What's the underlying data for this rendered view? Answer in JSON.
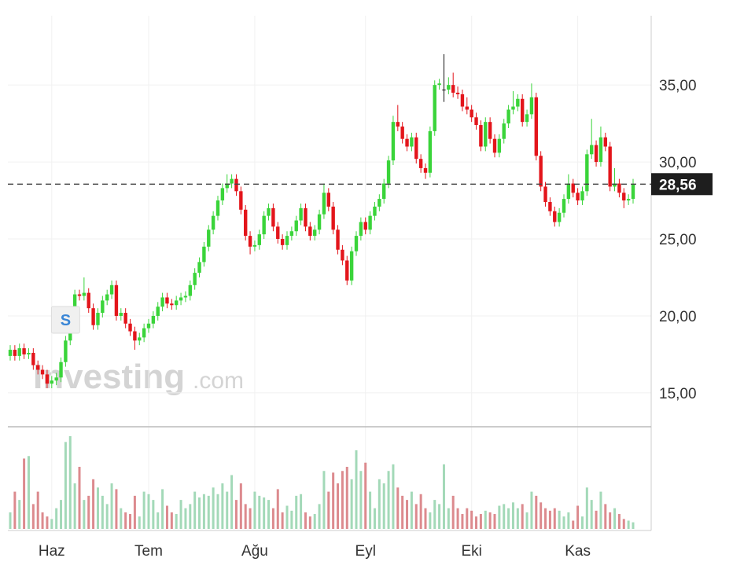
{
  "chart_data": {
    "type": "candlestick",
    "ylim": [
      12.8,
      39.5
    ],
    "yticks": [
      {
        "value": 15,
        "label": "15,00"
      },
      {
        "value": 20,
        "label": "20,00"
      },
      {
        "value": 25,
        "label": "25,00"
      },
      {
        "value": 30,
        "label": "30,00"
      },
      {
        "value": 35,
        "label": "35,00"
      }
    ],
    "grid": true,
    "last_price": {
      "value": 28.56,
      "label": "28,56"
    },
    "annotation": "S",
    "watermark": [
      "Investing",
      ".com"
    ],
    "up_color": "#3ad43a",
    "down_color": "#e3151b",
    "neutral_color": "#111111",
    "volume_up_color": "#a3d9b8",
    "volume_down_color": "#dc8a8e",
    "categories": [
      null,
      null,
      null,
      null,
      null,
      null,
      null,
      null,
      null,
      "Haz",
      null,
      null,
      null,
      null,
      null,
      null,
      null,
      null,
      null,
      null,
      null,
      null,
      null,
      null,
      null,
      null,
      null,
      null,
      null,
      null,
      "Tem",
      null,
      null,
      null,
      null,
      null,
      null,
      null,
      null,
      null,
      null,
      null,
      null,
      null,
      null,
      null,
      null,
      null,
      null,
      null,
      null,
      null,
      null,
      "Ağu",
      null,
      null,
      null,
      null,
      null,
      null,
      null,
      null,
      null,
      null,
      null,
      null,
      null,
      null,
      null,
      null,
      null,
      null,
      null,
      null,
      null,
      null,
      null,
      "Eyl",
      null,
      null,
      null,
      null,
      null,
      null,
      null,
      null,
      null,
      null,
      null,
      null,
      null,
      null,
      null,
      null,
      null,
      null,
      null,
      null,
      null,
      null,
      "Eki",
      null,
      null,
      null,
      null,
      null,
      null,
      null,
      null,
      null,
      null,
      null,
      null,
      null,
      null,
      null,
      null,
      null,
      null,
      null,
      null,
      null,
      null,
      "Kas",
      null,
      null,
      null,
      null,
      null,
      null,
      null,
      null,
      null,
      null,
      null,
      null
    ],
    "candles": [
      [
        17.4,
        18.1,
        17.1,
        17.8
      ],
      [
        17.8,
        18.1,
        17.1,
        17.4
      ],
      [
        17.4,
        18.2,
        17.1,
        17.9
      ],
      [
        17.9,
        18.2,
        17.2,
        17.5
      ],
      [
        17.5,
        17.9,
        17.2,
        17.6
      ],
      [
        17.6,
        17.9,
        16.5,
        16.8
      ],
      [
        16.8,
        17.1,
        16.2,
        16.5
      ],
      [
        16.5,
        16.8,
        15.9,
        16.2
      ],
      [
        16.2,
        16.5,
        15.3,
        15.6
      ],
      [
        15.6,
        16.1,
        15.3,
        15.8
      ],
      [
        15.8,
        16.3,
        15.5,
        16.0
      ],
      [
        16.0,
        17.3,
        15.7,
        17.0
      ],
      [
        17.0,
        18.7,
        16.7,
        18.4
      ],
      [
        18.4,
        19.8,
        18.1,
        19.5
      ],
      [
        19.5,
        21.7,
        19.2,
        21.4
      ],
      [
        21.4,
        21.7,
        21.0,
        21.3
      ],
      [
        21.3,
        22.5,
        21.0,
        21.5
      ],
      [
        21.5,
        21.8,
        20.2,
        20.5
      ],
      [
        20.5,
        20.8,
        19.1,
        19.4
      ],
      [
        19.4,
        20.5,
        19.1,
        20.2
      ],
      [
        20.2,
        21.3,
        19.9,
        21.0
      ],
      [
        21.0,
        21.7,
        20.7,
        21.4
      ],
      [
        21.4,
        22.3,
        21.1,
        22.0
      ],
      [
        22.0,
        22.3,
        19.7,
        20.0
      ],
      [
        20.0,
        20.5,
        19.7,
        20.2
      ],
      [
        20.2,
        20.5,
        19.2,
        19.5
      ],
      [
        19.5,
        19.8,
        18.7,
        19.0
      ],
      [
        19.0,
        19.3,
        17.8,
        18.4
      ],
      [
        18.4,
        18.9,
        18.1,
        18.6
      ],
      [
        18.6,
        19.5,
        18.3,
        19.2
      ],
      [
        19.2,
        19.8,
        18.9,
        19.5
      ],
      [
        19.5,
        20.3,
        19.2,
        20.0
      ],
      [
        20.0,
        20.9,
        19.7,
        20.6
      ],
      [
        20.6,
        21.5,
        20.3,
        21.2
      ],
      [
        21.2,
        21.5,
        20.5,
        20.8
      ],
      [
        20.8,
        21.1,
        20.4,
        20.7
      ],
      [
        20.7,
        21.3,
        20.4,
        21.0
      ],
      [
        21.0,
        21.5,
        20.7,
        21.2
      ],
      [
        21.2,
        21.6,
        20.9,
        21.3
      ],
      [
        21.3,
        22.3,
        21.0,
        22.0
      ],
      [
        22.0,
        23.1,
        21.7,
        22.8
      ],
      [
        22.8,
        23.8,
        22.5,
        23.5
      ],
      [
        23.5,
        24.8,
        23.2,
        24.5
      ],
      [
        24.5,
        25.9,
        24.2,
        25.6
      ],
      [
        25.6,
        26.8,
        25.3,
        26.5
      ],
      [
        26.5,
        27.8,
        26.2,
        27.5
      ],
      [
        27.5,
        28.6,
        27.2,
        28.3
      ],
      [
        28.3,
        29.2,
        28.0,
        28.6
      ],
      [
        28.6,
        29.2,
        28.3,
        28.9
      ],
      [
        28.9,
        29.2,
        27.8,
        28.1
      ],
      [
        28.1,
        28.4,
        26.6,
        26.9
      ],
      [
        26.9,
        27.2,
        24.9,
        25.2
      ],
      [
        25.2,
        25.5,
        24.0,
        24.5
      ],
      [
        24.5,
        24.9,
        24.2,
        24.6
      ],
      [
        24.6,
        25.6,
        24.3,
        25.3
      ],
      [
        25.3,
        26.8,
        25.0,
        26.5
      ],
      [
        26.5,
        27.3,
        26.2,
        27.0
      ],
      [
        27.0,
        27.3,
        25.5,
        25.8
      ],
      [
        25.8,
        26.1,
        24.7,
        25.0
      ],
      [
        25.0,
        25.3,
        24.3,
        24.6
      ],
      [
        24.6,
        25.5,
        24.3,
        25.2
      ],
      [
        25.2,
        25.8,
        24.9,
        25.5
      ],
      [
        25.5,
        26.5,
        25.2,
        26.2
      ],
      [
        26.2,
        27.3,
        25.9,
        27.0
      ],
      [
        27.0,
        27.3,
        25.5,
        25.8
      ],
      [
        25.8,
        26.1,
        24.9,
        25.2
      ],
      [
        25.2,
        25.9,
        24.9,
        25.6
      ],
      [
        25.6,
        26.9,
        25.3,
        26.6
      ],
      [
        26.6,
        28.6,
        26.3,
        28.0
      ],
      [
        28.0,
        28.3,
        26.8,
        27.1
      ],
      [
        27.1,
        27.4,
        25.3,
        25.6
      ],
      [
        25.6,
        25.9,
        24.0,
        24.3
      ],
      [
        24.3,
        24.6,
        23.3,
        23.6
      ],
      [
        23.6,
        23.9,
        22.0,
        22.3
      ],
      [
        22.3,
        24.5,
        22.0,
        24.2
      ],
      [
        24.2,
        25.5,
        23.9,
        25.2
      ],
      [
        25.2,
        26.4,
        24.9,
        26.1
      ],
      [
        26.1,
        26.4,
        25.3,
        25.6
      ],
      [
        25.6,
        26.8,
        25.3,
        26.5
      ],
      [
        26.5,
        27.4,
        26.2,
        27.1
      ],
      [
        27.1,
        27.9,
        26.8,
        27.6
      ],
      [
        27.6,
        28.9,
        27.3,
        28.6
      ],
      [
        28.6,
        30.4,
        28.3,
        30.1
      ],
      [
        30.1,
        33.0,
        29.8,
        32.6
      ],
      [
        32.6,
        33.7,
        32.0,
        32.3
      ],
      [
        32.3,
        32.6,
        31.2,
        31.5
      ],
      [
        31.5,
        31.8,
        30.7,
        31.0
      ],
      [
        31.0,
        31.9,
        30.7,
        31.6
      ],
      [
        31.6,
        31.9,
        29.9,
        30.2
      ],
      [
        30.2,
        30.5,
        29.3,
        29.6
      ],
      [
        29.6,
        29.9,
        28.9,
        29.3
      ],
      [
        29.3,
        32.3,
        29.0,
        32.0
      ],
      [
        32.0,
        35.3,
        31.7,
        35.0
      ],
      [
        35.0,
        35.4,
        34.7,
        35.1
      ],
      [
        34.7,
        37.0,
        33.9,
        34.7
      ],
      [
        34.7,
        35.5,
        34.4,
        35.0
      ],
      [
        35.0,
        35.8,
        34.2,
        34.5
      ],
      [
        34.5,
        34.9,
        34.1,
        34.4
      ],
      [
        34.4,
        34.7,
        33.3,
        33.6
      ],
      [
        33.6,
        34.2,
        33.1,
        33.4
      ],
      [
        33.4,
        33.7,
        32.6,
        32.9
      ],
      [
        32.9,
        33.2,
        32.1,
        32.4
      ],
      [
        32.4,
        32.7,
        30.7,
        31.0
      ],
      [
        31.0,
        32.9,
        30.7,
        32.6
      ],
      [
        32.6,
        32.9,
        31.2,
        31.5
      ],
      [
        31.5,
        31.8,
        30.3,
        30.6
      ],
      [
        30.6,
        31.8,
        30.3,
        31.5
      ],
      [
        31.5,
        32.8,
        31.2,
        32.5
      ],
      [
        32.5,
        33.7,
        32.2,
        33.4
      ],
      [
        33.4,
        34.6,
        33.1,
        33.6
      ],
      [
        33.6,
        34.4,
        33.3,
        34.1
      ],
      [
        34.1,
        34.4,
        32.3,
        32.6
      ],
      [
        32.6,
        33.4,
        32.3,
        33.1
      ],
      [
        33.1,
        35.1,
        32.8,
        34.2
      ],
      [
        34.2,
        34.5,
        30.1,
        30.4
      ],
      [
        30.4,
        30.7,
        28.1,
        28.4
      ],
      [
        28.4,
        28.7,
        27.1,
        27.4
      ],
      [
        27.4,
        27.7,
        26.5,
        26.8
      ],
      [
        26.8,
        27.1,
        25.8,
        26.1
      ],
      [
        26.1,
        27.0,
        25.8,
        26.7
      ],
      [
        26.7,
        27.9,
        26.4,
        27.6
      ],
      [
        27.6,
        29.2,
        27.3,
        28.6
      ],
      [
        28.6,
        28.9,
        27.7,
        28.0
      ],
      [
        28.0,
        28.3,
        27.2,
        27.5
      ],
      [
        27.5,
        28.4,
        27.2,
        28.1
      ],
      [
        28.1,
        30.8,
        27.8,
        30.5
      ],
      [
        30.5,
        32.8,
        30.2,
        31.1
      ],
      [
        31.1,
        31.4,
        29.7,
        30.0
      ],
      [
        30.0,
        32.3,
        29.7,
        31.6
      ],
      [
        31.6,
        31.9,
        30.7,
        31.0
      ],
      [
        31.0,
        31.3,
        28.1,
        28.4
      ],
      [
        28.4,
        29.6,
        28.1,
        28.6
      ],
      [
        28.6,
        28.9,
        27.7,
        28.0
      ],
      [
        28.0,
        28.3,
        27.0,
        27.5
      ],
      [
        27.5,
        27.9,
        27.2,
        27.6
      ],
      [
        27.6,
        28.9,
        27.3,
        28.56
      ]
    ],
    "volume": [
      20,
      45,
      35,
      85,
      88,
      30,
      45,
      20,
      15,
      12,
      25,
      35,
      105,
      112,
      55,
      75,
      35,
      40,
      60,
      50,
      40,
      30,
      55,
      48,
      25,
      20,
      18,
      40,
      15,
      45,
      42,
      35,
      20,
      48,
      28,
      20,
      18,
      35,
      25,
      30,
      45,
      38,
      42,
      40,
      50,
      42,
      55,
      45,
      65,
      35,
      55,
      30,
      25,
      45,
      40,
      38,
      35,
      25,
      48,
      20,
      28,
      22,
      40,
      42,
      20,
      15,
      18,
      30,
      70,
      45,
      68,
      55,
      70,
      75,
      60,
      95,
      70,
      80,
      45,
      25,
      60,
      55,
      70,
      78,
      50,
      40,
      35,
      45,
      30,
      42,
      25,
      20,
      35,
      30,
      78,
      25,
      40,
      25,
      18,
      25,
      22,
      15,
      18,
      22,
      20,
      18,
      28,
      30,
      25,
      32,
      25,
      30,
      20,
      45,
      40,
      32,
      25,
      22,
      25,
      22,
      15,
      20,
      10,
      28,
      15,
      50,
      35,
      22,
      45,
      30,
      20,
      25,
      18,
      12,
      10,
      8
    ]
  }
}
